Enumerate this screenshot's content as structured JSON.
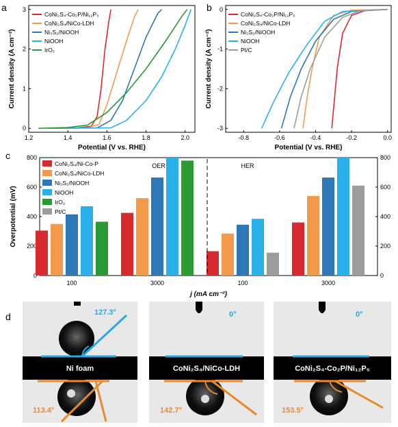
{
  "colors": {
    "red": "#d62a2f",
    "orange": "#f29a4a",
    "blue": "#2d77b6",
    "cyan": "#29b0ea",
    "green": "#2a9a35",
    "gray": "#9c9c9c",
    "anglecyan": "#29a8e0",
    "angleorange": "#e8892b"
  },
  "chart_data": [
    {
      "panel": "a",
      "type": "line",
      "xlabel": "Potential (V vs. RHE)",
      "ylabel": "Current density (A cm⁻²)",
      "xlim": [
        1.2,
        2.05
      ],
      "ylim": [
        -0.1,
        3.1
      ],
      "xticks": [
        "1.2",
        "1.4",
        "1.6",
        "1.8",
        "2.0"
      ],
      "yticks": [
        "0",
        "1",
        "2",
        "3"
      ],
      "series": [
        {
          "name": "CoNi₂S₄-Co₂P/Ni₁₂P₅",
          "color": "red",
          "points": [
            [
              1.3,
              0
            ],
            [
              1.45,
              0.01
            ],
            [
              1.52,
              0.05
            ],
            [
              1.55,
              0.3
            ],
            [
              1.57,
              1.0
            ],
            [
              1.59,
              2.0
            ],
            [
              1.61,
              2.7
            ],
            [
              1.62,
              3.0
            ]
          ]
        },
        {
          "name": "CoNi₂S₄/NiCo-LDH",
          "color": "orange",
          "points": [
            [
              1.3,
              0
            ],
            [
              1.5,
              0.01
            ],
            [
              1.56,
              0.1
            ],
            [
              1.6,
              0.6
            ],
            [
              1.65,
              1.4
            ],
            [
              1.7,
              2.2
            ],
            [
              1.74,
              2.8
            ],
            [
              1.76,
              3.0
            ]
          ]
        },
        {
          "name": "Ni₃S₂/NiOOH",
          "color": "blue",
          "points": [
            [
              1.3,
              0
            ],
            [
              1.55,
              0.01
            ],
            [
              1.62,
              0.2
            ],
            [
              1.68,
              0.7
            ],
            [
              1.74,
              1.5
            ],
            [
              1.8,
              2.3
            ],
            [
              1.86,
              2.9
            ],
            [
              1.88,
              3.0
            ]
          ]
        },
        {
          "name": "NiOOH",
          "color": "cyan",
          "points": [
            [
              1.3,
              0
            ],
            [
              1.62,
              0.01
            ],
            [
              1.7,
              0.2
            ],
            [
              1.8,
              0.7
            ],
            [
              1.88,
              1.3
            ],
            [
              1.95,
              2.0
            ],
            [
              2.0,
              2.6
            ],
            [
              2.03,
              3.0
            ]
          ]
        },
        {
          "name": "IrO₂",
          "color": "green",
          "points": [
            [
              1.25,
              0
            ],
            [
              1.4,
              0.02
            ],
            [
              1.5,
              0.08
            ],
            [
              1.6,
              0.4
            ],
            [
              1.7,
              0.9
            ],
            [
              1.8,
              1.5
            ],
            [
              1.9,
              2.2
            ],
            [
              1.98,
              2.8
            ],
            [
              2.01,
              3.0
            ]
          ]
        }
      ]
    },
    {
      "panel": "b",
      "type": "line",
      "xlabel": "Potential (V vs. RHE)",
      "ylabel": "Current density (A cm⁻²)",
      "xlim": [
        -0.9,
        0.02
      ],
      "ylim": [
        -3.1,
        0.1
      ],
      "xticks": [
        "-0.8",
        "-0.6",
        "-0.4",
        "-0.2",
        "0.0"
      ],
      "yticks": [
        "0",
        "-1",
        "-2",
        "-3"
      ],
      "series": [
        {
          "name": "CoNi₂S₄-Co₂P/Ni₁₂P₅",
          "color": "red",
          "points": [
            [
              0.0,
              0
            ],
            [
              -0.12,
              -0.02
            ],
            [
              -0.2,
              -0.15
            ],
            [
              -0.25,
              -0.6
            ],
            [
              -0.28,
              -1.5
            ],
            [
              -0.3,
              -2.5
            ],
            [
              -0.31,
              -3.0
            ]
          ]
        },
        {
          "name": "CoNi₂S₄/NiCo-LDH",
          "color": "orange",
          "points": [
            [
              0.0,
              0
            ],
            [
              -0.2,
              -0.02
            ],
            [
              -0.3,
              -0.15
            ],
            [
              -0.38,
              -0.7
            ],
            [
              -0.42,
              -1.5
            ],
            [
              -0.45,
              -2.3
            ],
            [
              -0.47,
              -3.0
            ]
          ]
        },
        {
          "name": "Ni₃S₂/NiOOH",
          "color": "blue",
          "points": [
            [
              0.0,
              0
            ],
            [
              -0.2,
              -0.05
            ],
            [
              -0.3,
              -0.25
            ],
            [
              -0.4,
              -0.8
            ],
            [
              -0.48,
              -1.5
            ],
            [
              -0.54,
              -2.2
            ],
            [
              -0.59,
              -3.0
            ]
          ]
        },
        {
          "name": "NiOOH",
          "color": "cyan",
          "points": [
            [
              0.0,
              0
            ],
            [
              -0.25,
              -0.05
            ],
            [
              -0.35,
              -0.3
            ],
            [
              -0.45,
              -0.9
            ],
            [
              -0.55,
              -1.6
            ],
            [
              -0.63,
              -2.3
            ],
            [
              -0.7,
              -3.0
            ]
          ]
        },
        {
          "name": "Pt/C",
          "color": "gray",
          "points": [
            [
              0.0,
              0
            ],
            [
              -0.15,
              -0.03
            ],
            [
              -0.25,
              -0.2
            ],
            [
              -0.35,
              -0.7
            ],
            [
              -0.43,
              -1.5
            ],
            [
              -0.48,
              -2.2
            ],
            [
              -0.52,
              -3.0
            ]
          ]
        }
      ]
    },
    {
      "panel": "c",
      "type": "bar",
      "xlabel": "j (mA cm⁻²)",
      "ylabel": "Overpotential (mV)",
      "ylim": [
        0,
        800
      ],
      "yticks": [
        "0",
        "200",
        "400",
        "600",
        "800"
      ],
      "group_labels": [
        "100",
        "3000",
        "100",
        "3000"
      ],
      "section_labels": [
        "OER",
        "HER"
      ],
      "legend": [
        {
          "name": "CoNi₂S₄/Ni-Co-P",
          "color": "red"
        },
        {
          "name": "CoNi₂S₄/NiCo-LDH",
          "color": "orange"
        },
        {
          "name": "Ni₃S₂/NiOOH",
          "color": "blue"
        },
        {
          "name": "NiOOH",
          "color": "cyan"
        },
        {
          "name": "IrO₂",
          "color": "green"
        },
        {
          "name": "Pt/C",
          "color": "gray"
        }
      ],
      "groups": [
        {
          "bars": [
            [
              "red",
              305
            ],
            [
              "orange",
              350
            ],
            [
              "blue",
              415
            ],
            [
              "cyan",
              470
            ],
            [
              "green",
              365
            ]
          ]
        },
        {
          "bars": [
            [
              "red",
              425
            ],
            [
              "orange",
              525
            ],
            [
              "blue",
              665
            ],
            [
              "cyan",
              800
            ],
            [
              "green",
              780
            ]
          ]
        },
        {
          "bars": [
            [
              "red",
              165
            ],
            [
              "orange",
              285
            ],
            [
              "blue",
              345
            ],
            [
              "cyan",
              385
            ],
            [
              "gray",
              155
            ]
          ]
        },
        {
          "bars": [
            [
              "red",
              360
            ],
            [
              "orange",
              540
            ],
            [
              "blue",
              665
            ],
            [
              "cyan",
              805
            ],
            [
              "gray",
              610
            ]
          ]
        }
      ]
    }
  ],
  "panel_d": {
    "photos": [
      {
        "label": "Ni foam",
        "top_angle": "127.3°",
        "bottom_angle": "113.4°"
      },
      {
        "label": "CoNi₂S₄/NiCo-LDH",
        "top_angle": "0°",
        "bottom_angle": "142.7°"
      },
      {
        "label": "CoNi₂S₄-Co₂P/Ni₁₂P₅",
        "top_angle": "0°",
        "bottom_angle": "153.5°"
      }
    ]
  },
  "labels": {
    "a": "a",
    "b": "b",
    "c": "c",
    "d": "d"
  }
}
